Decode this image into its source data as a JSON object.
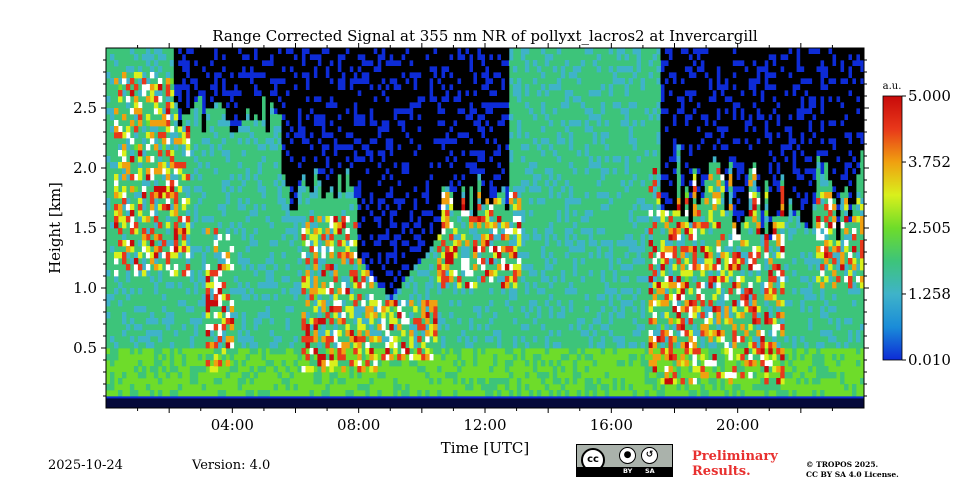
{
  "chart_data": {
    "type": "heatmap",
    "title": "Range Corrected Signal at 355 nm NR of pollyxt_lacros2 at Invercargill",
    "xlabel": "Time [UTC]",
    "ylabel": "Height [km]",
    "x_unit": "hours UTC",
    "xlim": [
      0,
      24
    ],
    "ylim": [
      0,
      3.0
    ],
    "x_ticks": [
      {
        "value": 4,
        "label": "04:00"
      },
      {
        "value": 8,
        "label": "08:00"
      },
      {
        "value": 12,
        "label": "12:00"
      },
      {
        "value": 16,
        "label": "16:00"
      },
      {
        "value": 20,
        "label": "20:00"
      }
    ],
    "y_ticks": [
      {
        "value": 0.5,
        "label": "0.5"
      },
      {
        "value": 1.0,
        "label": "1.0"
      },
      {
        "value": 1.5,
        "label": "1.5"
      },
      {
        "value": 2.0,
        "label": "2.0"
      },
      {
        "value": 2.5,
        "label": "2.5"
      }
    ],
    "colorbar": {
      "unit": "a.u.",
      "range": [
        0.01,
        5.0
      ],
      "ticks": [
        {
          "value": 0.01,
          "label": "0.010"
        },
        {
          "value": 1.258,
          "label": "1.258"
        },
        {
          "value": 2.505,
          "label": "2.505"
        },
        {
          "value": 3.752,
          "label": "3.752"
        },
        {
          "value": 5.0,
          "label": "5.000"
        }
      ],
      "colors": [
        "#0d2bd6",
        "#1a8cd8",
        "#3fb3c9",
        "#3dc47a",
        "#6edc2a",
        "#d9f01c",
        "#f0a010",
        "#e8381a",
        "#c80a0a"
      ]
    },
    "features": {
      "clear_sky_noise_periods": [
        [
          2.2,
          5.2
        ],
        [
          5.2,
          10.6
        ],
        [
          10.6,
          12.8
        ],
        [
          17.5,
          24.0
        ]
      ],
      "cloud_layers": [
        {
          "t": [
            0.2,
            2.6
          ],
          "base_km": 1.1,
          "top_km": 2.8
        },
        {
          "t": [
            3.2,
            4.0
          ],
          "base_km": 0.3,
          "top_km": 1.5
        },
        {
          "t": [
            6.2,
            8.6
          ],
          "base_km": 0.3,
          "top_km": 1.6
        },
        {
          "t": [
            8.6,
            10.5
          ],
          "base_km": 0.4,
          "top_km": 0.9
        },
        {
          "t": [
            10.5,
            13.2
          ],
          "base_km": 1.0,
          "top_km": 1.8
        },
        {
          "t": [
            17.2,
            21.5
          ],
          "base_km": 0.2,
          "top_km": 2.0
        },
        {
          "t": [
            22.5,
            24.0
          ],
          "base_km": 1.0,
          "top_km": 1.8
        }
      ],
      "surface_layer_top_km": 0.08
    }
  },
  "footer": {
    "date": "2025-10-24",
    "version": "Version: 4.0",
    "preliminary": [
      "Preliminary",
      "Results."
    ],
    "copyright": [
      "© TROPOS 2025.",
      "CC BY SA 4.0 License."
    ],
    "license_badge": {
      "cc": "cc",
      "by": "BY",
      "sa": "SA"
    }
  },
  "colors": {
    "preliminary_text": "#e8302f"
  }
}
